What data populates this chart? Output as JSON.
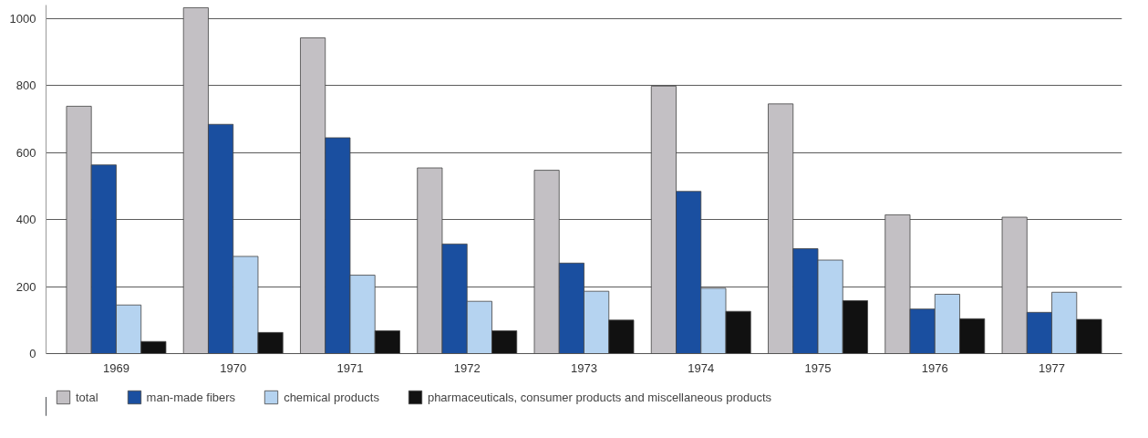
{
  "chart_data": {
    "type": "bar",
    "categories": [
      "1969",
      "1970",
      "1971",
      "1972",
      "1973",
      "1974",
      "1975",
      "1976",
      "1977"
    ],
    "series": [
      {
        "name": "total",
        "color": "#c3c0c4",
        "values": [
          738,
          1032,
          942,
          554,
          547,
          798,
          745,
          414,
          407
        ]
      },
      {
        "name": "man-made fibers",
        "color": "#1a4fa0",
        "values": [
          563,
          684,
          644,
          327,
          270,
          484,
          313,
          133,
          123
        ]
      },
      {
        "name": "chemical products",
        "color": "#b5d3f0",
        "values": [
          145,
          290,
          234,
          156,
          186,
          195,
          279,
          177,
          183
        ]
      },
      {
        "name": "pharmaceuticals, consumer products and miscellaneous products",
        "color": "#111111",
        "values": [
          36,
          63,
          68,
          68,
          100,
          126,
          158,
          104,
          102
        ]
      }
    ],
    "ylim": [
      0,
      1040
    ],
    "yticks": [
      0,
      200,
      400,
      600,
      800,
      1000
    ],
    "grid": "y",
    "legend": "bottom"
  }
}
